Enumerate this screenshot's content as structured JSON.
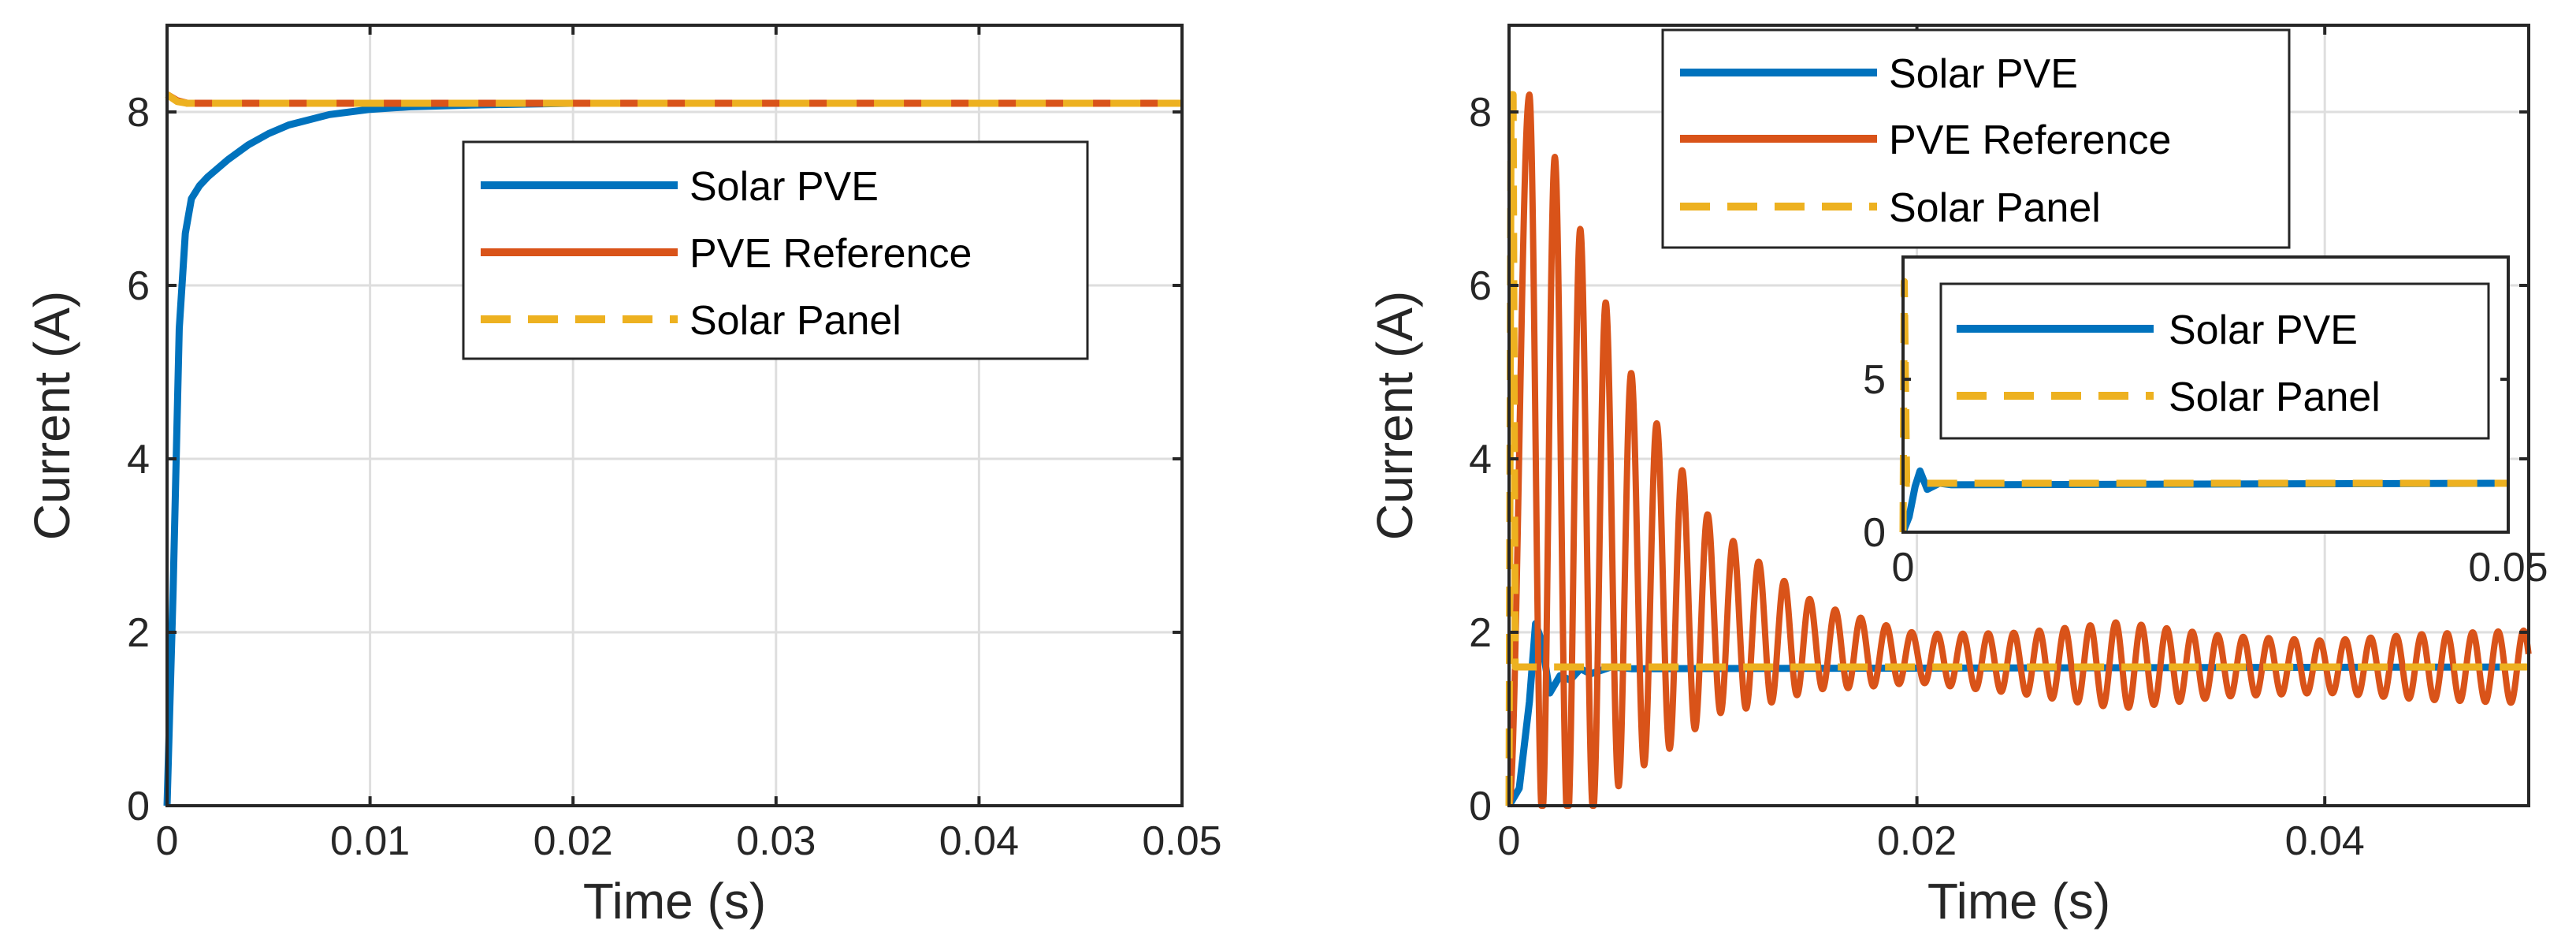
{
  "colors": {
    "solar_pve": "#0072BD",
    "pve_reference": "#D95319",
    "solar_panel": "#EDB120"
  },
  "chart_data": [
    {
      "type": "line",
      "title": "",
      "xlabel": "Time (s)",
      "ylabel": "Current (A)",
      "xlim": [
        0,
        0.05
      ],
      "ylim": [
        0,
        9
      ],
      "xticks": [
        0,
        0.01,
        0.02,
        0.03,
        0.04,
        0.05
      ],
      "xtick_labels": [
        "0",
        "0.01",
        "0.02",
        "0.03",
        "0.04",
        "0.05"
      ],
      "yticks": [
        0,
        2,
        4,
        6,
        8
      ],
      "ytick_labels": [
        "0",
        "2",
        "4",
        "6",
        "8"
      ],
      "grid": true,
      "legend": [
        "Solar PVE",
        "PVE Reference",
        "Solar Panel"
      ],
      "legend_position": "center-right",
      "series": [
        {
          "name": "Solar PVE",
          "color": "#0072BD",
          "style": "solid",
          "x": [
            0,
            0.0003,
            0.0006,
            0.0009,
            0.0012,
            0.0016,
            0.002,
            0.003,
            0.004,
            0.005,
            0.006,
            0.008,
            0.01,
            0.012,
            0.015,
            0.02,
            0.025,
            0.05
          ],
          "y": [
            0,
            2.5,
            5.5,
            6.6,
            7.0,
            7.15,
            7.25,
            7.45,
            7.62,
            7.75,
            7.85,
            7.97,
            8.03,
            8.06,
            8.08,
            8.1,
            8.1,
            8.1
          ]
        },
        {
          "name": "PVE Reference",
          "color": "#D95319",
          "style": "solid",
          "x": [
            0,
            0.0005,
            0.001,
            0.0015,
            0.002,
            0.05
          ],
          "y": [
            8.2,
            8.13,
            8.1,
            8.1,
            8.1,
            8.1
          ]
        },
        {
          "name": "Solar Panel",
          "color": "#EDB120",
          "style": "dashed",
          "x": [
            0,
            0.0005,
            0.001,
            0.05
          ],
          "y": [
            8.2,
            8.12,
            8.1,
            8.1
          ]
        }
      ]
    },
    {
      "type": "line",
      "title": "",
      "xlabel": "Time (s)",
      "ylabel": "Current (A)",
      "xlim": [
        0,
        0.05
      ],
      "ylim": [
        0,
        9
      ],
      "xticks": [
        0,
        0.02,
        0.04
      ],
      "xtick_labels": [
        "0",
        "0.02",
        "0.04"
      ],
      "yticks": [
        0,
        2,
        4,
        6,
        8
      ],
      "ytick_labels": [
        "0",
        "2",
        "4",
        "6",
        "8"
      ],
      "grid": true,
      "legend": [
        "Solar PVE",
        "PVE Reference",
        "Solar Panel"
      ],
      "legend_position": "top",
      "series": [
        {
          "name": "Solar PVE",
          "color": "#0072BD",
          "style": "solid",
          "x": [
            0,
            0.0005,
            0.001,
            0.0013,
            0.0016,
            0.002,
            0.0025,
            0.003,
            0.0035,
            0.004,
            0.005,
            0.006,
            0.05
          ],
          "y": [
            0,
            0.2,
            1.2,
            2.1,
            1.9,
            1.3,
            1.5,
            1.45,
            1.58,
            1.52,
            1.6,
            1.58,
            1.6
          ]
        },
        {
          "name": "PVE Reference",
          "color": "#D95319",
          "style": "oscillation",
          "period": 0.00125,
          "center_start": 4.1,
          "center_end": 1.6,
          "decay_time": 0.006,
          "envelope": {
            "t": [
              0.001,
              0.0025,
              0.004,
              0.006,
              0.01,
              0.015,
              0.02,
              0.025,
              0.03,
              0.035,
              0.04,
              0.045,
              0.05
            ],
            "amp": [
              4.1,
              3.8,
              3.2,
              2.3,
              1.1,
              0.5,
              0.28,
              0.35,
              0.5,
              0.35,
              0.3,
              0.38,
              0.42
            ]
          }
        },
        {
          "name": "Solar Panel",
          "color": "#EDB120",
          "style": "dashed",
          "x": [
            0,
            0.0001,
            0.0002,
            0.0003,
            0.05
          ],
          "y": [
            0,
            8.2,
            8.2,
            1.6,
            1.6
          ]
        }
      ]
    },
    {
      "type": "line",
      "title": "",
      "xlabel": "",
      "ylabel": "",
      "xlim": [
        0,
        0.05
      ],
      "ylim": [
        0,
        9
      ],
      "xticks": [
        0,
        0.05
      ],
      "xtick_labels": [
        "0",
        "0.05"
      ],
      "yticks": [
        0,
        5
      ],
      "ytick_labels": [
        "0",
        "5"
      ],
      "grid": false,
      "legend": [
        "Solar PVE",
        "Solar Panel"
      ],
      "legend_position": "top-right",
      "series": [
        {
          "name": "Solar PVE",
          "color": "#0072BD",
          "style": "solid",
          "x": [
            0,
            0.0005,
            0.001,
            0.0014,
            0.002,
            0.003,
            0.004,
            0.05
          ],
          "y": [
            0,
            0.5,
            1.5,
            2.0,
            1.4,
            1.6,
            1.55,
            1.6
          ]
        },
        {
          "name": "Solar Panel",
          "color": "#EDB120",
          "style": "dashed",
          "x": [
            0,
            0.0001,
            0.0003,
            0.05
          ],
          "y": [
            0,
            8.2,
            1.6,
            1.6
          ]
        }
      ]
    }
  ]
}
